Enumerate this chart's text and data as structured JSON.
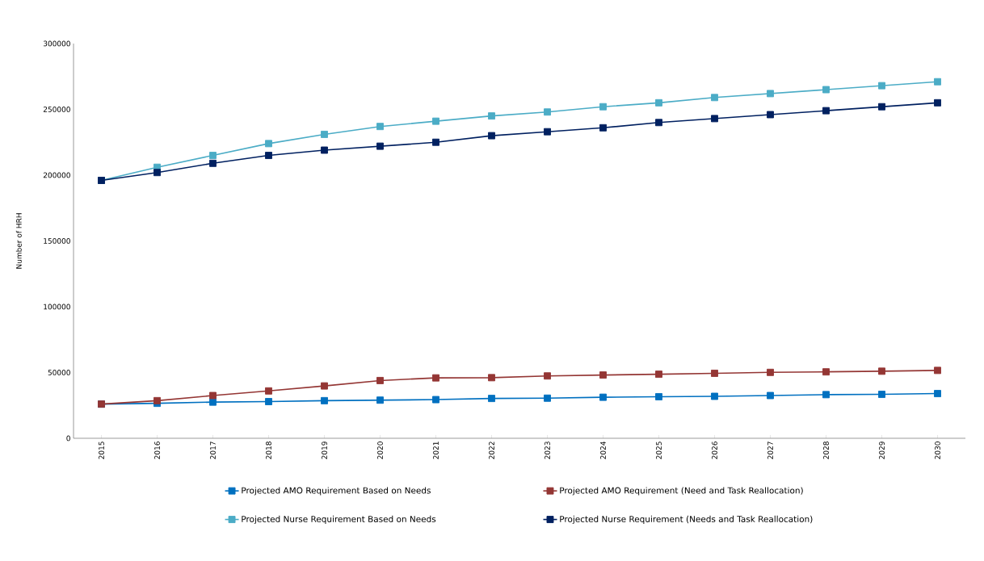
{
  "chart_data": {
    "type": "line",
    "ylabel": "Number of HRH",
    "categories": [
      "2015",
      "2016",
      "2017",
      "2018",
      "2019",
      "2020",
      "2021",
      "2022",
      "2023",
      "2024",
      "2025",
      "2026",
      "2027",
      "2028",
      "2029",
      "2030"
    ],
    "ylim": [
      0,
      300000
    ],
    "yticks": [
      0,
      50000,
      100000,
      150000,
      200000,
      250000,
      300000
    ],
    "grid": false,
    "legend": "bottom",
    "marker": "square",
    "line_style": "solid",
    "series": [
      {
        "name": "Projected AMO Requirement Based on Needs",
        "color": "#0070c0",
        "values": [
          26000,
          26600,
          27500,
          27900,
          28600,
          29000,
          29400,
          30300,
          30500,
          31200,
          31600,
          31900,
          32500,
          33200,
          33400,
          34000
        ]
      },
      {
        "name": "Projected AMO Requirement (Need and Task  Reallocation)",
        "color": "#943634",
        "values": [
          26000,
          28600,
          32500,
          36000,
          39800,
          43900,
          45900,
          46100,
          47400,
          48100,
          48700,
          49400,
          50100,
          50500,
          51000,
          51600
        ]
      },
      {
        "name": "Projected Nurse Requirement Based on Needs",
        "color": "#4bacc6",
        "values": [
          196000,
          206000,
          215000,
          224000,
          231000,
          237000,
          241000,
          245000,
          248000,
          252000,
          255000,
          259000,
          262000,
          265000,
          268000,
          271000
        ]
      },
      {
        "name": "Projected Nurse Requirement (Needs and Task  Reallocation)",
        "color": "#002060",
        "values": [
          196000,
          202000,
          209000,
          215000,
          219000,
          222000,
          225000,
          230000,
          233000,
          236000,
          240000,
          243000,
          246000,
          249000,
          252000,
          255000
        ]
      }
    ]
  }
}
